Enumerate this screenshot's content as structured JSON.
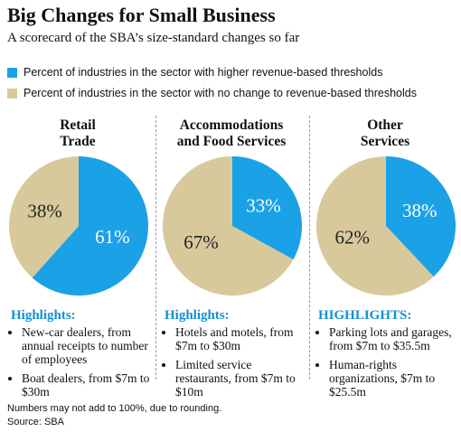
{
  "title": "Big Changes for Small Business",
  "subtitle": "A scorecard of the SBA’s size-standard changes so far",
  "legend": [
    {
      "name": "Percent of industries in the sector with higher revenue-based thresholds",
      "color": "#1ba1e6"
    },
    {
      "name": "Percent of industries in the sector with no change to revenue-based thresholds",
      "color": "#d8c99c"
    }
  ],
  "chart_data": [
    {
      "type": "pie",
      "title": [
        "Retail",
        "Trade"
      ],
      "values": [
        61,
        38
      ],
      "value_labels": [
        "61%",
        "38%"
      ],
      "highlights_heading": "Highlights:",
      "highlights": [
        "New-car dealers, from annual receipts to number of employees",
        "Boat dealers, from $7m to $30m"
      ]
    },
    {
      "type": "pie",
      "title": [
        "Accommodations",
        "and Food Services"
      ],
      "values": [
        33,
        67
      ],
      "value_labels": [
        "33%",
        "67%"
      ],
      "highlights_heading": "Highlights:",
      "highlights": [
        "Hotels and motels, from $7m to $30m",
        "Limited service restaurants, from $7m to $10m"
      ]
    },
    {
      "type": "pie",
      "title": [
        "Other",
        "Services"
      ],
      "values": [
        38,
        62
      ],
      "value_labels": [
        "38%",
        "62%"
      ],
      "highlights_heading": "HIGHLIGHTS:",
      "highlights": [
        "Parking lots and garages, from $7m to $35.5m",
        "Human-rights organizations, $7m to $25.5m"
      ]
    }
  ],
  "note": "Numbers may not add to 100%, due to rounding.",
  "source": "Source: SBA"
}
